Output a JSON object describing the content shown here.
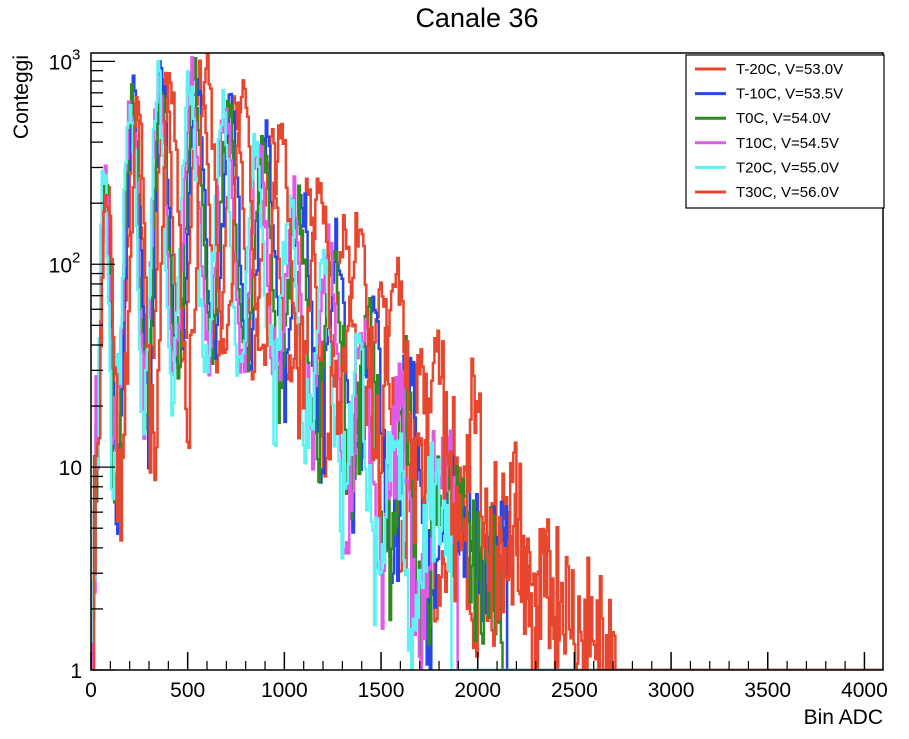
{
  "chart_data": {
    "type": "line",
    "title": "Canale 36",
    "xlabel": "Bin ADC",
    "ylabel": "Conteggi",
    "xlim": [
      0,
      4096
    ],
    "ylim": [
      1,
      1100
    ],
    "y_scale": "log",
    "grid": false,
    "legend_position": "top-right",
    "x_ticks": [
      "0",
      "500",
      "1000",
      "1500",
      "2000",
      "2500",
      "3000",
      "3500",
      "4000"
    ],
    "y_ticks": [
      {
        "label": "10",
        "sup": "3"
      },
      {
        "label": "10",
        "sup": "2"
      },
      {
        "label": "10",
        "sup": ""
      },
      {
        "label": "1",
        "sup": ""
      }
    ],
    "series": [
      {
        "name": "T-20C, V=53.0V",
        "color": "#e8472f",
        "width": 2.5,
        "peaks": [
          [
            75,
            280
          ],
          [
            225,
            650
          ],
          [
            375,
            900
          ],
          [
            560,
            880
          ],
          [
            740,
            650
          ],
          [
            925,
            420
          ],
          [
            1115,
            230
          ],
          [
            1305,
            140
          ],
          [
            1500,
            70
          ],
          [
            1695,
            32
          ],
          [
            1890,
            13
          ],
          [
            2090,
            5
          ],
          [
            2290,
            2.5
          ]
        ],
        "valleys": [
          [
            140,
            11
          ],
          [
            300,
            20
          ],
          [
            465,
            30
          ],
          [
            650,
            38
          ],
          [
            835,
            35
          ],
          [
            1020,
            30
          ],
          [
            1210,
            18
          ],
          [
            1400,
            10
          ],
          [
            1600,
            5
          ],
          [
            1790,
            3
          ],
          [
            1990,
            1.8
          ]
        ]
      },
      {
        "name": "T-10C, V=53.5V",
        "color": "#2646e8",
        "width": 2.5,
        "peaks": [
          [
            70,
            290
          ],
          [
            215,
            660
          ],
          [
            360,
            880
          ],
          [
            540,
            870
          ],
          [
            720,
            620
          ],
          [
            900,
            400
          ],
          [
            1085,
            220
          ],
          [
            1270,
            130
          ],
          [
            1455,
            60
          ],
          [
            1645,
            25
          ],
          [
            1830,
            9
          ],
          [
            2030,
            3.5
          ]
        ],
        "valleys": [
          [
            130,
            10
          ],
          [
            290,
            20
          ],
          [
            450,
            30
          ],
          [
            630,
            36
          ],
          [
            810,
            34
          ],
          [
            995,
            28
          ],
          [
            1180,
            16
          ],
          [
            1365,
            9
          ],
          [
            1555,
            4
          ],
          [
            1740,
            2.2
          ]
        ]
      },
      {
        "name": "T0C, V=54.0V",
        "color": "#2e8b22",
        "width": 2.5,
        "peaks": [
          [
            68,
            300
          ],
          [
            210,
            680
          ],
          [
            355,
            860
          ],
          [
            530,
            850
          ],
          [
            705,
            610
          ],
          [
            885,
            390
          ],
          [
            1065,
            215
          ],
          [
            1250,
            125
          ],
          [
            1435,
            55
          ],
          [
            1620,
            22
          ],
          [
            1810,
            8
          ],
          [
            2000,
            3
          ]
        ],
        "valleys": [
          [
            125,
            10
          ],
          [
            285,
            20
          ],
          [
            440,
            30
          ],
          [
            620,
            36
          ],
          [
            795,
            32
          ],
          [
            975,
            27
          ],
          [
            1160,
            15
          ],
          [
            1345,
            8
          ],
          [
            1530,
            3.5
          ],
          [
            1715,
            2
          ]
        ]
      },
      {
        "name": "T10C, V=54.5V",
        "color": "#e05ae8",
        "width": 2.5,
        "peaks": [
          [
            65,
            310
          ],
          [
            205,
            700
          ],
          [
            345,
            850
          ],
          [
            515,
            840
          ],
          [
            690,
            600
          ],
          [
            865,
            380
          ],
          [
            1045,
            210
          ],
          [
            1225,
            120
          ],
          [
            1405,
            50
          ],
          [
            1590,
            20
          ],
          [
            1775,
            7
          ]
        ],
        "valleys": [
          [
            120,
            10
          ],
          [
            275,
            20
          ],
          [
            430,
            30
          ],
          [
            605,
            35
          ],
          [
            780,
            32
          ],
          [
            955,
            26
          ],
          [
            1135,
            15
          ],
          [
            1315,
            7
          ],
          [
            1500,
            3
          ],
          [
            1680,
            1.8
          ]
        ]
      },
      {
        "name": "T20C, V=55.0V",
        "color": "#5ef2f2",
        "width": 2.5,
        "peaks": [
          [
            60,
            340
          ],
          [
            200,
            720
          ],
          [
            340,
            830
          ],
          [
            505,
            820
          ],
          [
            675,
            580
          ],
          [
            850,
            370
          ],
          [
            1025,
            200
          ],
          [
            1200,
            110
          ],
          [
            1380,
            45
          ],
          [
            1560,
            18
          ],
          [
            1740,
            6
          ]
        ],
        "valleys": [
          [
            115,
            10
          ],
          [
            270,
            20
          ],
          [
            420,
            29
          ],
          [
            590,
            34
          ],
          [
            765,
            31
          ],
          [
            940,
            25
          ],
          [
            1115,
            14
          ],
          [
            1290,
            6
          ],
          [
            1470,
            2.6
          ],
          [
            1650,
            1.6
          ]
        ]
      },
      {
        "name": "T30C, V=56.0V",
        "color": "#e8472f",
        "width": 2.5,
        "peaks": [
          [
            80,
            250
          ],
          [
            240,
            600
          ],
          [
            405,
            920
          ],
          [
            595,
            890
          ],
          [
            785,
            700
          ],
          [
            980,
            460
          ],
          [
            1180,
            260
          ],
          [
            1380,
            160
          ],
          [
            1580,
            85
          ],
          [
            1780,
            40
          ],
          [
            1985,
            17
          ],
          [
            2185,
            7
          ],
          [
            2390,
            3
          ],
          [
            2590,
            1.6
          ]
        ],
        "valleys": [
          [
            150,
            8
          ],
          [
            320,
            14
          ],
          [
            500,
            25
          ],
          [
            690,
            35
          ],
          [
            880,
            33
          ],
          [
            1080,
            26
          ],
          [
            1280,
            18
          ],
          [
            1480,
            12
          ],
          [
            1680,
            7
          ],
          [
            1880,
            4
          ],
          [
            2085,
            2.5
          ],
          [
            2290,
            1.6
          ]
        ]
      }
    ]
  }
}
